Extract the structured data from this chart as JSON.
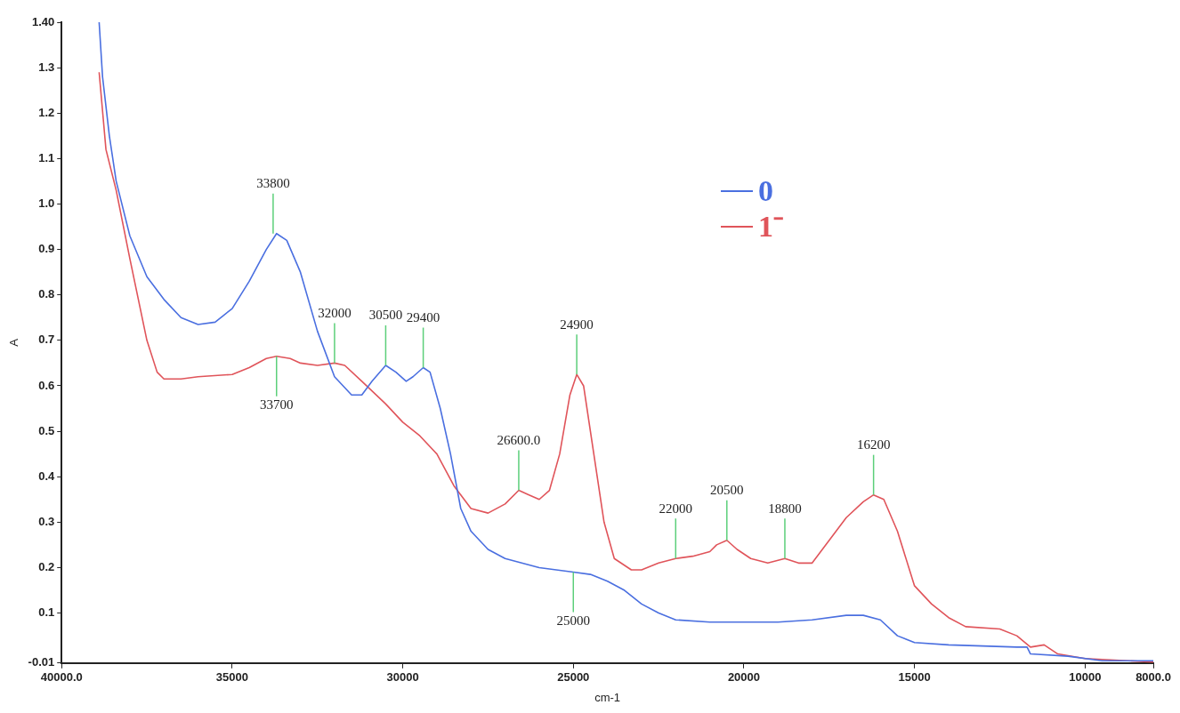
{
  "chart_data": {
    "type": "line",
    "xlabel": "cm-1",
    "ylabel": "A",
    "xlim": [
      40000,
      8000
    ],
    "xticks": [
      {
        "value": 40000,
        "label": "40000.0"
      },
      35000,
      30000,
      25000,
      20000,
      15000,
      10000,
      {
        "value": 8000,
        "label": "8000.0"
      }
    ],
    "ylim": [
      -0.01,
      1.4
    ],
    "yticks": [
      -0.01,
      0.1,
      0.2,
      0.3,
      0.4,
      0.5,
      0.6,
      0.7,
      0.8,
      0.9,
      {
        "value": 1,
        "label": "1.0"
      },
      1.1,
      1.2,
      1.3,
      {
        "value": 1.4,
        "label": "1.40"
      }
    ],
    "grid": false,
    "legend": "top right",
    "marker": "none",
    "series": [
      {
        "name": "0",
        "color": "#4a6fe0",
        "x": [
          38900,
          38800,
          38600,
          38400,
          38000,
          37500,
          37000,
          36500,
          36000,
          35500,
          35000,
          34500,
          34000,
          33700,
          33400,
          33000,
          32500,
          32000,
          31500,
          31200,
          30900,
          30500,
          30200,
          29900,
          29700,
          29400,
          29200,
          28900,
          28600,
          28300,
          28000,
          27500,
          27000,
          26000,
          25000,
          24500,
          24000,
          23500,
          23000,
          22500,
          22000,
          21000,
          20000,
          19000,
          18000,
          17000,
          16500,
          16000,
          15500,
          15000,
          14000,
          12000,
          11700,
          11600,
          10500,
          9500,
          8000
        ],
        "values": [
          1.4,
          1.28,
          1.15,
          1.05,
          0.93,
          0.84,
          0.79,
          0.75,
          0.735,
          0.74,
          0.77,
          0.83,
          0.9,
          0.935,
          0.92,
          0.85,
          0.72,
          0.62,
          0.58,
          0.58,
          0.61,
          0.645,
          0.63,
          0.61,
          0.62,
          0.64,
          0.63,
          0.55,
          0.45,
          0.33,
          0.28,
          0.24,
          0.22,
          0.2,
          0.19,
          0.185,
          0.17,
          0.15,
          0.12,
          0.1,
          0.085,
          0.08,
          0.08,
          0.08,
          0.085,
          0.095,
          0.095,
          0.085,
          0.05,
          0.035,
          0.03,
          0.025,
          0.025,
          0.01,
          0.005,
          -0.005,
          -0.005
        ]
      },
      {
        "name": "1⁻",
        "color": "#e0545a",
        "x": [
          38900,
          38700,
          38400,
          38000,
          37500,
          37200,
          37000,
          36500,
          36000,
          35000,
          34500,
          34000,
          33700,
          33300,
          33000,
          32500,
          32000,
          31700,
          31200,
          30500,
          30000,
          29500,
          29000,
          28500,
          28000,
          27500,
          27000,
          26600,
          26300,
          26000,
          25700,
          25400,
          25100,
          24900,
          24700,
          24400,
          24100,
          23800,
          23300,
          23000,
          22500,
          22000,
          21500,
          21000,
          20800,
          20500,
          20200,
          19800,
          19300,
          18800,
          18400,
          18000,
          17500,
          17000,
          16500,
          16200,
          15900,
          15500,
          15000,
          14500,
          14000,
          13500,
          12500,
          12000,
          11600,
          11200,
          10800,
          10000,
          8000
        ],
        "values": [
          1.29,
          1.12,
          1.03,
          0.88,
          0.7,
          0.63,
          0.615,
          0.615,
          0.62,
          0.625,
          0.64,
          0.66,
          0.665,
          0.66,
          0.65,
          0.645,
          0.65,
          0.645,
          0.61,
          0.56,
          0.52,
          0.49,
          0.45,
          0.38,
          0.33,
          0.32,
          0.34,
          0.37,
          0.36,
          0.35,
          0.37,
          0.45,
          0.58,
          0.625,
          0.6,
          0.45,
          0.3,
          0.22,
          0.195,
          0.195,
          0.21,
          0.22,
          0.225,
          0.235,
          0.25,
          0.26,
          0.24,
          0.22,
          0.21,
          0.22,
          0.21,
          0.21,
          0.26,
          0.31,
          0.345,
          0.36,
          0.35,
          0.28,
          0.16,
          0.12,
          0.09,
          0.07,
          0.065,
          0.05,
          0.025,
          0.03,
          0.01,
          0,
          -0.008
        ]
      }
    ],
    "annotations": [
      {
        "text": "33800",
        "x": 33800,
        "y": 0.935
      },
      {
        "text": "33700",
        "x": 33700,
        "y": 0.665
      },
      {
        "text": "32000",
        "x": 32000,
        "y": 0.65
      },
      {
        "text": "30500",
        "x": 30500,
        "y": 0.645
      },
      {
        "text": "29400",
        "x": 29400,
        "y": 0.64
      },
      {
        "text": "26600.0",
        "x": 26600,
        "y": 0.37
      },
      {
        "text": "24900",
        "x": 24900,
        "y": 0.625
      },
      {
        "text": "25000",
        "x": 25000,
        "y": 0.19
      },
      {
        "text": "22000",
        "x": 22000,
        "y": 0.22
      },
      {
        "text": "20500",
        "x": 20500,
        "y": 0.26
      },
      {
        "text": "18800",
        "x": 18800,
        "y": 0.22
      },
      {
        "text": "16200",
        "x": 16200,
        "y": 0.36
      }
    ]
  }
}
